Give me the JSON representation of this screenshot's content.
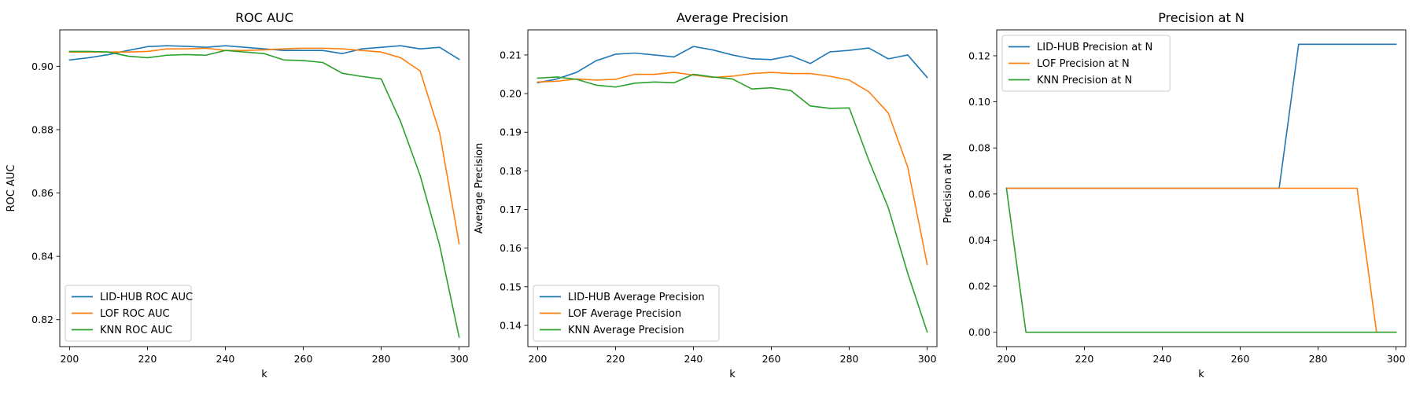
{
  "chart_data": [
    {
      "type": "line",
      "title": "ROC AUC",
      "xlabel": "k",
      "ylabel": "ROC AUC",
      "xlim": [
        197.5,
        302.5
      ],
      "ylim": [
        0.8115,
        0.9115
      ],
      "xticks": [
        200,
        220,
        240,
        260,
        280,
        300
      ],
      "yticks": [
        0.82,
        0.84,
        0.86,
        0.88,
        0.9
      ],
      "ytick_labels": [
        "0.82",
        "0.84",
        "0.86",
        "0.88",
        "0.90"
      ],
      "legend": "lower-left",
      "grid": false,
      "x": [
        200,
        205,
        210,
        215,
        220,
        225,
        230,
        235,
        240,
        245,
        250,
        255,
        260,
        265,
        270,
        275,
        280,
        285,
        290,
        295,
        300
      ],
      "series": [
        {
          "name": "LID-HUB ROC AUC",
          "color": "#1f77b4",
          "values": [
            0.902,
            0.9027,
            0.9037,
            0.905,
            0.9062,
            0.9065,
            0.9063,
            0.906,
            0.9065,
            0.906,
            0.9055,
            0.905,
            0.905,
            0.905,
            0.904,
            0.9055,
            0.906,
            0.9065,
            0.9055,
            0.906,
            0.9022
          ]
        },
        {
          "name": "LOF ROC AUC",
          "color": "#ff7f0e",
          "values": [
            0.9045,
            0.9045,
            0.9045,
            0.9045,
            0.9047,
            0.9055,
            0.9055,
            0.9057,
            0.905,
            0.905,
            0.9052,
            0.9055,
            0.9057,
            0.9057,
            0.9055,
            0.905,
            0.9045,
            0.9027,
            0.8985,
            0.879,
            0.844
          ]
        },
        {
          "name": "KNN ROC AUC",
          "color": "#2ca02c",
          "values": [
            0.9047,
            0.9047,
            0.9045,
            0.9032,
            0.9027,
            0.9035,
            0.9037,
            0.9035,
            0.905,
            0.9045,
            0.904,
            0.902,
            0.9018,
            0.9012,
            0.8978,
            0.8968,
            0.896,
            0.8825,
            0.8655,
            0.8435,
            0.8145
          ]
        }
      ]
    },
    {
      "type": "line",
      "title": "Average Precision",
      "xlabel": "k",
      "ylabel": "Average Precision",
      "xlim": [
        197.5,
        302.5
      ],
      "ylim": [
        0.1345,
        0.2165
      ],
      "xticks": [
        200,
        220,
        240,
        260,
        280,
        300
      ],
      "yticks": [
        0.14,
        0.15,
        0.16,
        0.17,
        0.18,
        0.19,
        0.2,
        0.21
      ],
      "ytick_labels": [
        "0.14",
        "0.15",
        "0.16",
        "0.17",
        "0.18",
        "0.19",
        "0.20",
        "0.21"
      ],
      "legend": "lower-left",
      "grid": false,
      "x": [
        200,
        205,
        210,
        215,
        220,
        225,
        230,
        235,
        240,
        245,
        250,
        255,
        260,
        265,
        270,
        275,
        280,
        285,
        290,
        295,
        300
      ],
      "series": [
        {
          "name": "LID-HUB Average Precision",
          "color": "#1f77b4",
          "values": [
            0.2028,
            0.2038,
            0.2055,
            0.2085,
            0.2102,
            0.2105,
            0.21,
            0.2095,
            0.2122,
            0.2113,
            0.21,
            0.209,
            0.2088,
            0.2098,
            0.2078,
            0.2108,
            0.2112,
            0.2118,
            0.209,
            0.21,
            0.2042
          ]
        },
        {
          "name": "LOF Average Precision",
          "color": "#ff7f0e",
          "values": [
            0.203,
            0.2032,
            0.2038,
            0.2035,
            0.2037,
            0.205,
            0.205,
            0.2055,
            0.2048,
            0.2042,
            0.2045,
            0.2052,
            0.2055,
            0.2052,
            0.2052,
            0.2045,
            0.2035,
            0.2005,
            0.195,
            0.181,
            0.1558
          ]
        },
        {
          "name": "KNN Average Precision",
          "color": "#2ca02c",
          "values": [
            0.204,
            0.2043,
            0.2037,
            0.2022,
            0.2017,
            0.2027,
            0.203,
            0.2028,
            0.205,
            0.2043,
            0.2038,
            0.2012,
            0.2015,
            0.2008,
            0.1968,
            0.1962,
            0.1963,
            0.1828,
            0.1705,
            0.1535,
            0.1383
          ]
        }
      ]
    },
    {
      "type": "line",
      "title": "Precision at N",
      "xlabel": "k",
      "ylabel": "Precision at N",
      "xlim": [
        197.5,
        302.5
      ],
      "ylim": [
        -0.00625,
        0.13125
      ],
      "xticks": [
        200,
        220,
        240,
        260,
        280,
        300
      ],
      "yticks": [
        0.0,
        0.02,
        0.04,
        0.06,
        0.08,
        0.1,
        0.12
      ],
      "ytick_labels": [
        "0.00",
        "0.02",
        "0.04",
        "0.06",
        "0.08",
        "0.10",
        "0.12"
      ],
      "legend": "upper-left",
      "grid": false,
      "x": [
        200,
        205,
        210,
        215,
        220,
        225,
        230,
        235,
        240,
        245,
        250,
        255,
        260,
        265,
        270,
        275,
        280,
        285,
        290,
        295,
        300
      ],
      "series": [
        {
          "name": "LID-HUB Precision at N",
          "color": "#1f77b4",
          "values": [
            0.0625,
            0.0625,
            0.0625,
            0.0625,
            0.0625,
            0.0625,
            0.0625,
            0.0625,
            0.0625,
            0.0625,
            0.0625,
            0.0625,
            0.0625,
            0.0625,
            0.0625,
            0.125,
            0.125,
            0.125,
            0.125,
            0.125,
            0.125
          ]
        },
        {
          "name": "LOF Precision at N",
          "color": "#ff7f0e",
          "values": [
            0.0625,
            0.0625,
            0.0625,
            0.0625,
            0.0625,
            0.0625,
            0.0625,
            0.0625,
            0.0625,
            0.0625,
            0.0625,
            0.0625,
            0.0625,
            0.0625,
            0.0625,
            0.0625,
            0.0625,
            0.0625,
            0.0625,
            0.0,
            0.0
          ]
        },
        {
          "name": "KNN Precision at N",
          "color": "#2ca02c",
          "values": [
            0.0625,
            0.0,
            0.0,
            0.0,
            0.0,
            0.0,
            0.0,
            0.0,
            0.0,
            0.0,
            0.0,
            0.0,
            0.0,
            0.0,
            0.0,
            0.0,
            0.0,
            0.0,
            0.0,
            0.0,
            0.0
          ]
        }
      ]
    }
  ]
}
